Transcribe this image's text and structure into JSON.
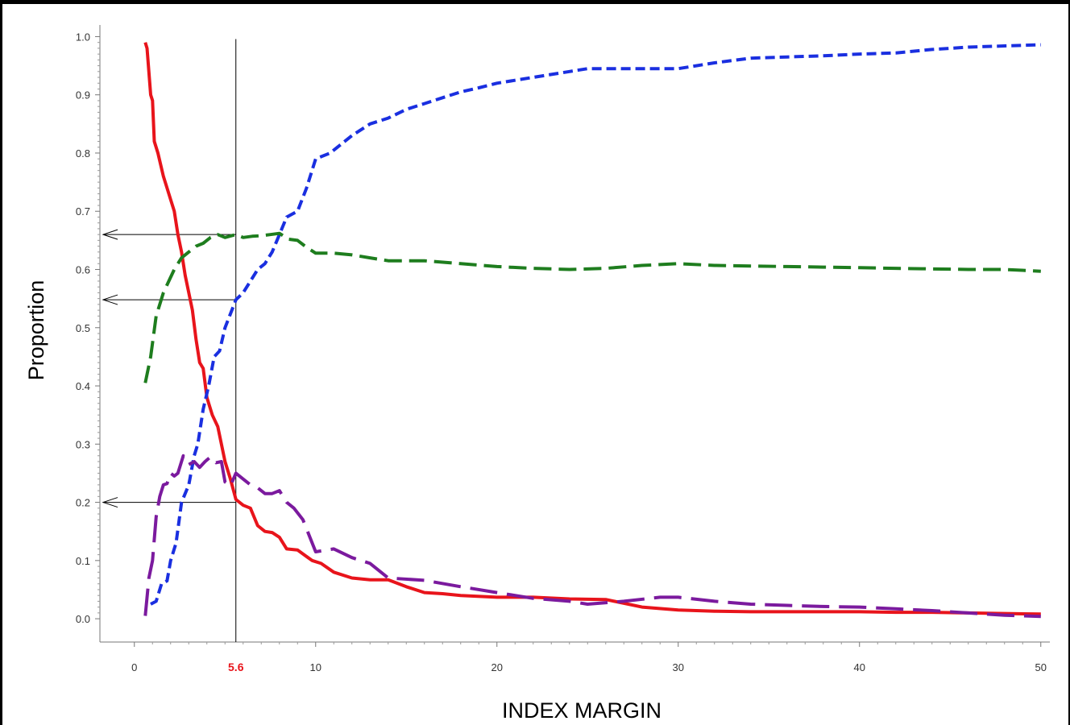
{
  "chart_data": {
    "type": "line",
    "xlabel": "INDEX MARGIN",
    "ylabel": "Proportion",
    "xlim": [
      -1.9,
      50.5
    ],
    "ylim": [
      -0.04,
      1.02
    ],
    "xticks": [
      0,
      10,
      20,
      30,
      40,
      50
    ],
    "xtick_labels": [
      "0",
      "10",
      "20",
      "30",
      "40",
      "50"
    ],
    "yticks": [
      0.0,
      0.1,
      0.2,
      0.3,
      0.4,
      0.5,
      0.6,
      0.7,
      0.8,
      0.9,
      1.0
    ],
    "ytick_labels": [
      "0.0",
      "0.1",
      "0.2",
      "0.3",
      "0.4",
      "0.5",
      "0.6",
      "0.7",
      "0.8",
      "0.9",
      "1.0"
    ],
    "grid": false,
    "legend": "none",
    "reference_line": {
      "x": 5.6,
      "label": "5.6",
      "label_color": "#e8141b",
      "arrows_y": [
        0.66,
        0.548,
        0.2
      ]
    },
    "series": [
      {
        "color": "#e8141b",
        "dash": "solid",
        "x": [
          0.6,
          0.7,
          0.9,
          1.0,
          1.1,
          1.3,
          1.6,
          1.8,
          2.0,
          2.2,
          2.4,
          2.6,
          2.8,
          3.0,
          3.2,
          3.4,
          3.6,
          3.8,
          4.0,
          4.3,
          4.6,
          5.0,
          5.3,
          5.6,
          6.0,
          6.4,
          6.8,
          7.2,
          7.6,
          8.0,
          8.4,
          9.0,
          9.8,
          10.3,
          11.0,
          12.0,
          13.0,
          14.0,
          15.0,
          16.0,
          17.0,
          18.0,
          20.0,
          22.0,
          24.0,
          26.0,
          28.0,
          30.0,
          32.0,
          34.0,
          36.0,
          38.0,
          40.0,
          42.0,
          44.0,
          46.0,
          48.0,
          50.0
        ],
        "values": [
          0.99,
          0.98,
          0.9,
          0.89,
          0.82,
          0.8,
          0.76,
          0.74,
          0.72,
          0.7,
          0.66,
          0.63,
          0.59,
          0.56,
          0.53,
          0.48,
          0.44,
          0.43,
          0.38,
          0.35,
          0.33,
          0.27,
          0.24,
          0.205,
          0.195,
          0.19,
          0.16,
          0.15,
          0.148,
          0.14,
          0.12,
          0.118,
          0.1,
          0.095,
          0.08,
          0.07,
          0.067,
          0.067,
          0.055,
          0.045,
          0.043,
          0.04,
          0.037,
          0.037,
          0.034,
          0.033,
          0.02,
          0.015,
          0.013,
          0.012,
          0.012,
          0.012,
          0.012,
          0.011,
          0.011,
          0.01,
          0.009,
          0.008
        ]
      },
      {
        "color": "#1a2fe0",
        "dash": "short-dash",
        "x": [
          0.9,
          1.2,
          1.5,
          1.8,
          2.0,
          2.3,
          2.6,
          3.0,
          3.3,
          3.5,
          3.8,
          4.1,
          4.4,
          4.7,
          5.0,
          5.6,
          6.0,
          6.4,
          6.8,
          7.2,
          7.6,
          8.0,
          8.4,
          9.0,
          9.5,
          10.0,
          10.8,
          12.0,
          13.0,
          14.0,
          15.0,
          16.0,
          17.0,
          18.0,
          19.0,
          20.0,
          22.0,
          24.0,
          25.0,
          27.0,
          30.0,
          32.0,
          34.0,
          36.0,
          38.0,
          40.0,
          42.0,
          44.0,
          46.0,
          48.0,
          50.0
        ],
        "values": [
          0.025,
          0.03,
          0.06,
          0.065,
          0.1,
          0.13,
          0.2,
          0.23,
          0.28,
          0.3,
          0.36,
          0.4,
          0.45,
          0.46,
          0.5,
          0.548,
          0.56,
          0.58,
          0.6,
          0.61,
          0.63,
          0.66,
          0.69,
          0.7,
          0.74,
          0.79,
          0.8,
          0.83,
          0.85,
          0.86,
          0.875,
          0.885,
          0.895,
          0.905,
          0.912,
          0.92,
          0.93,
          0.94,
          0.945,
          0.945,
          0.945,
          0.955,
          0.963,
          0.965,
          0.967,
          0.97,
          0.972,
          0.978,
          0.982,
          0.984,
          0.986
        ]
      },
      {
        "color": "#1e7d1e",
        "dash": "medium-dash",
        "x": [
          0.6,
          0.9,
          1.2,
          1.6,
          1.9,
          2.2,
          2.6,
          3.0,
          3.4,
          3.8,
          4.2,
          4.6,
          5.0,
          5.6,
          6.0,
          6.5,
          7.0,
          7.5,
          8.0,
          8.5,
          9.0,
          9.5,
          10.0,
          11.0,
          12.0,
          13.0,
          14.0,
          15.0,
          16.0,
          18.0,
          20.0,
          22.0,
          24.0,
          26.0,
          28.0,
          30.0,
          32.0,
          34.0,
          36.0,
          38.0,
          40.0,
          42.0,
          44.0,
          46.0,
          48.0,
          50.0
        ],
        "values": [
          0.405,
          0.45,
          0.52,
          0.56,
          0.58,
          0.6,
          0.62,
          0.63,
          0.64,
          0.645,
          0.655,
          0.66,
          0.655,
          0.66,
          0.655,
          0.657,
          0.658,
          0.66,
          0.662,
          0.652,
          0.65,
          0.638,
          0.628,
          0.628,
          0.625,
          0.62,
          0.615,
          0.615,
          0.615,
          0.61,
          0.605,
          0.602,
          0.6,
          0.602,
          0.607,
          0.61,
          0.607,
          0.606,
          0.605,
          0.604,
          0.603,
          0.602,
          0.601,
          0.6,
          0.6,
          0.597
        ]
      },
      {
        "color": "#7b1a9e",
        "dash": "long-dash",
        "x": [
          0.6,
          0.8,
          1.0,
          1.2,
          1.4,
          1.6,
          1.8,
          2.0,
          2.2,
          2.4,
          2.7,
          3.0,
          3.3,
          3.6,
          3.9,
          4.2,
          4.5,
          4.8,
          5.0,
          5.3,
          5.6,
          6.0,
          6.4,
          6.8,
          7.2,
          7.6,
          8.0,
          8.4,
          8.8,
          9.3,
          10.0,
          11.0,
          12.0,
          13.0,
          14.0,
          16.0,
          18.0,
          20.0,
          22.0,
          24.0,
          25.0,
          27.0,
          29.0,
          30.0,
          32.0,
          34.0,
          36.0,
          38.0,
          40.0,
          42.0,
          44.0,
          46.0,
          48.0,
          50.0
        ],
        "values": [
          0.005,
          0.07,
          0.1,
          0.175,
          0.21,
          0.23,
          0.232,
          0.25,
          0.245,
          0.25,
          0.28,
          0.265,
          0.27,
          0.26,
          0.27,
          0.278,
          0.268,
          0.27,
          0.235,
          0.228,
          0.25,
          0.24,
          0.23,
          0.225,
          0.215,
          0.215,
          0.22,
          0.2,
          0.19,
          0.17,
          0.115,
          0.12,
          0.105,
          0.095,
          0.07,
          0.066,
          0.055,
          0.045,
          0.035,
          0.03,
          0.025,
          0.03,
          0.037,
          0.037,
          0.03,
          0.025,
          0.023,
          0.021,
          0.02,
          0.017,
          0.014,
          0.01,
          0.006,
          0.004
        ]
      }
    ]
  }
}
